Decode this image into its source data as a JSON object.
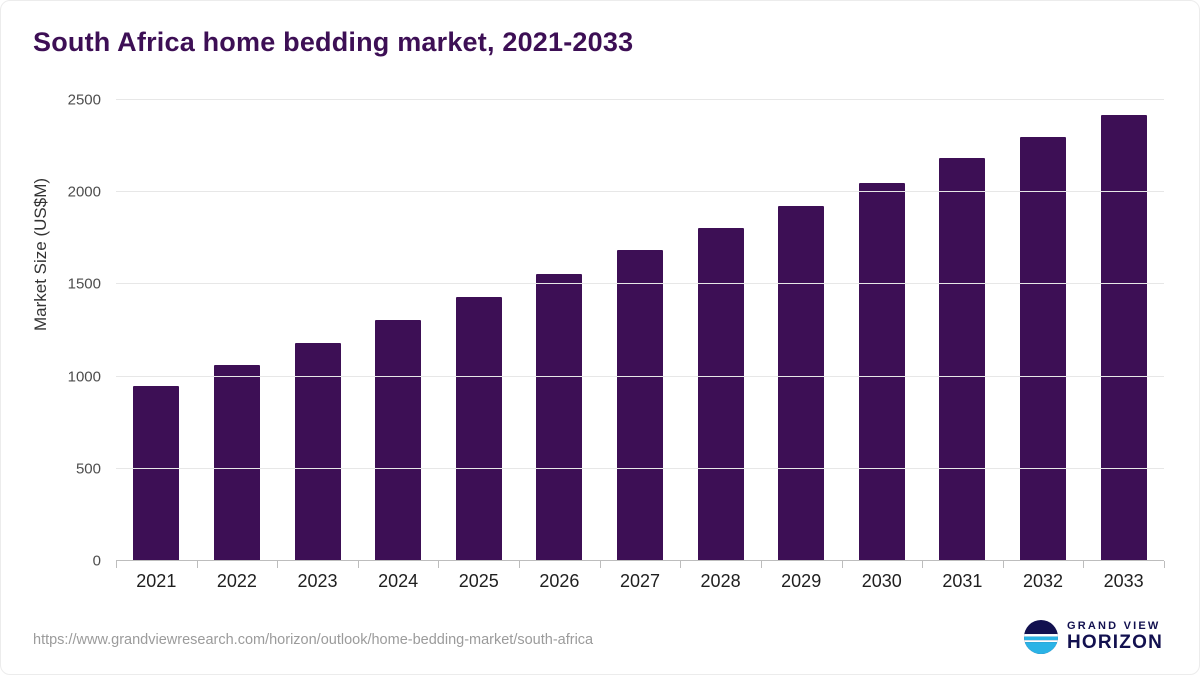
{
  "title": "South Africa home bedding market, 2021-2033",
  "colors": {
    "bar": "#3d0f55",
    "title": "#3d0f55",
    "gridline": "#e7e7e7",
    "brand_navy": "#12104f",
    "brand_blue": "#2bb3e6"
  },
  "chart_data": {
    "type": "bar",
    "title": "South Africa home bedding market, 2021-2033",
    "categories": [
      "2021",
      "2022",
      "2023",
      "2024",
      "2025",
      "2026",
      "2027",
      "2028",
      "2029",
      "2030",
      "2031",
      "2032",
      "2033"
    ],
    "values": [
      950,
      1065,
      1185,
      1305,
      1430,
      1555,
      1685,
      1805,
      1925,
      2050,
      2185,
      2300,
      2420
    ],
    "xlabel": "",
    "ylabel": "Market Size (US$M)",
    "ylim": [
      0,
      2500
    ],
    "yticks": [
      0,
      500,
      1000,
      1500,
      2000,
      2500
    ],
    "grid": true,
    "legend": "none",
    "bar_color": "#3d0f55"
  },
  "footer": {
    "source_url": "https://www.grandviewresearch.com/horizon/outlook/home-bedding-market/south-africa",
    "brand_line1": "GRAND VIEW",
    "brand_line2": "HORIZON"
  }
}
